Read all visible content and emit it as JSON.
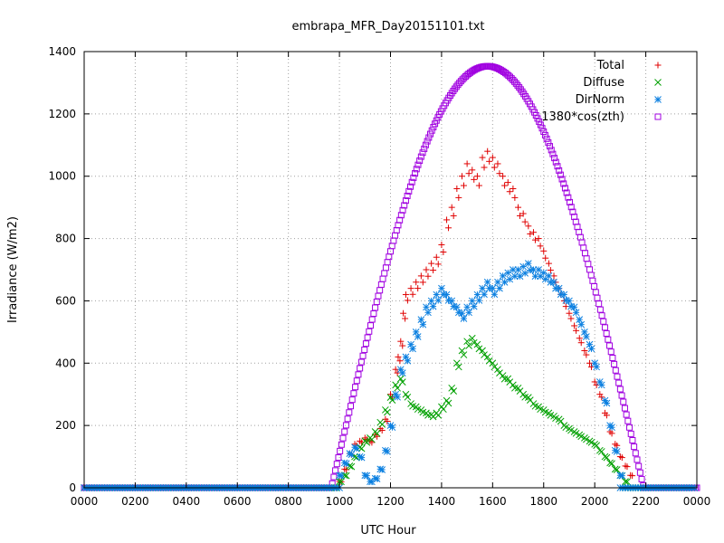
{
  "chart_data": {
    "type": "scatter",
    "title": "embrapa_MFR_Day20151101.txt",
    "xlabel": "UTC Hour",
    "ylabel": "Irradiance (W/m2)",
    "xlim": [
      0,
      24
    ],
    "ylim": [
      0,
      1400
    ],
    "xtick_labels": [
      "0000",
      "0200",
      "0400",
      "0600",
      "0800",
      "1000",
      "1200",
      "1400",
      "1600",
      "1800",
      "2000",
      "2200",
      "0000"
    ],
    "ytick_labels": [
      "0",
      "200",
      "400",
      "600",
      "800",
      "1000",
      "1200",
      "1400"
    ],
    "grid": true,
    "legend_position": "top-right",
    "series": [
      {
        "name": "Total",
        "marker": "plus",
        "color": "#e00000",
        "x": [
          9.8,
          10.0,
          10.2,
          10.4,
          10.6,
          10.8,
          11.0,
          11.2,
          11.4,
          11.6,
          11.8,
          12.0,
          12.2,
          12.3,
          12.4,
          12.5,
          12.6,
          12.8,
          13.0,
          13.2,
          13.4,
          13.6,
          13.8,
          14.0,
          14.2,
          14.4,
          14.6,
          14.8,
          15.0,
          15.2,
          15.4,
          15.6,
          15.8,
          16.0,
          16.2,
          16.4,
          16.6,
          16.8,
          17.0,
          17.2,
          17.4,
          17.6,
          17.8,
          18.0,
          18.2,
          18.4,
          18.6,
          18.8,
          19.0,
          19.2,
          19.4,
          19.6,
          19.8,
          20.0,
          20.2,
          20.4,
          20.6,
          20.8,
          21.0,
          21.2,
          21.4
        ],
        "y": [
          0,
          20,
          60,
          110,
          140,
          150,
          160,
          150,
          170,
          190,
          220,
          300,
          380,
          420,
          470,
          560,
          620,
          640,
          660,
          680,
          700,
          720,
          740,
          780,
          860,
          900,
          960,
          1000,
          1040,
          1020,
          1000,
          1060,
          1080,
          1060,
          1040,
          1000,
          980,
          960,
          900,
          880,
          840,
          820,
          800,
          760,
          720,
          680,
          640,
          600,
          560,
          520,
          480,
          440,
          400,
          340,
          300,
          240,
          180,
          140,
          100,
          70,
          40
        ]
      },
      {
        "name": "Diffuse",
        "marker": "cross",
        "color": "#00a000",
        "x": [
          9.8,
          10.0,
          10.2,
          10.4,
          10.6,
          10.8,
          11.0,
          11.2,
          11.4,
          11.6,
          11.8,
          12.0,
          12.2,
          12.4,
          12.6,
          12.8,
          13.0,
          13.2,
          13.4,
          13.6,
          13.8,
          14.0,
          14.2,
          14.4,
          14.6,
          14.8,
          15.0,
          15.2,
          15.4,
          15.6,
          15.8,
          16.0,
          16.2,
          16.4,
          16.6,
          16.8,
          17.0,
          17.2,
          17.4,
          17.6,
          17.8,
          18.0,
          18.2,
          18.4,
          18.6,
          18.8,
          19.0,
          19.2,
          19.4,
          19.6,
          19.8,
          20.0,
          20.2,
          20.4,
          20.6,
          20.8,
          21.0,
          21.2
        ],
        "y": [
          0,
          20,
          40,
          70,
          100,
          130,
          150,
          160,
          180,
          210,
          250,
          290,
          330,
          350,
          300,
          270,
          260,
          250,
          240,
          235,
          240,
          260,
          280,
          320,
          400,
          440,
          470,
          480,
          460,
          440,
          420,
          400,
          380,
          360,
          350,
          330,
          320,
          300,
          290,
          270,
          260,
          250,
          240,
          230,
          220,
          200,
          190,
          180,
          170,
          160,
          150,
          140,
          120,
          100,
          80,
          60,
          40,
          20
        ]
      },
      {
        "name": "DirNorm",
        "marker": "star",
        "color": "#0a7fe0",
        "x": [
          10.0,
          10.2,
          10.4,
          10.6,
          10.8,
          11.0,
          11.2,
          11.4,
          11.6,
          11.8,
          12.0,
          12.2,
          12.4,
          12.6,
          12.8,
          13.0,
          13.2,
          13.4,
          13.6,
          13.8,
          14.0,
          14.2,
          14.4,
          14.6,
          14.8,
          15.0,
          15.2,
          15.4,
          15.6,
          15.8,
          16.0,
          16.2,
          16.4,
          16.6,
          16.8,
          17.0,
          17.2,
          17.4,
          17.6,
          17.8,
          18.0,
          18.2,
          18.4,
          18.6,
          18.8,
          19.0,
          19.2,
          19.4,
          19.6,
          19.8,
          20.0,
          20.2,
          20.4,
          20.6,
          20.8,
          21.0
        ],
        "y": [
          40,
          80,
          110,
          130,
          100,
          40,
          20,
          30,
          60,
          120,
          200,
          300,
          380,
          420,
          460,
          500,
          540,
          580,
          600,
          620,
          640,
          620,
          600,
          580,
          560,
          580,
          600,
          620,
          640,
          660,
          640,
          660,
          680,
          690,
          700,
          700,
          710,
          720,
          700,
          700,
          690,
          680,
          660,
          640,
          620,
          600,
          580,
          540,
          500,
          460,
          400,
          340,
          280,
          200,
          120,
          40
        ]
      },
      {
        "name": "1380*cos(zth)",
        "marker": "square",
        "color": "#a000e0",
        "peak_x": 15.8,
        "peak_y": 1353,
        "x_start": 9.68,
        "x_end": 21.92
      }
    ]
  }
}
